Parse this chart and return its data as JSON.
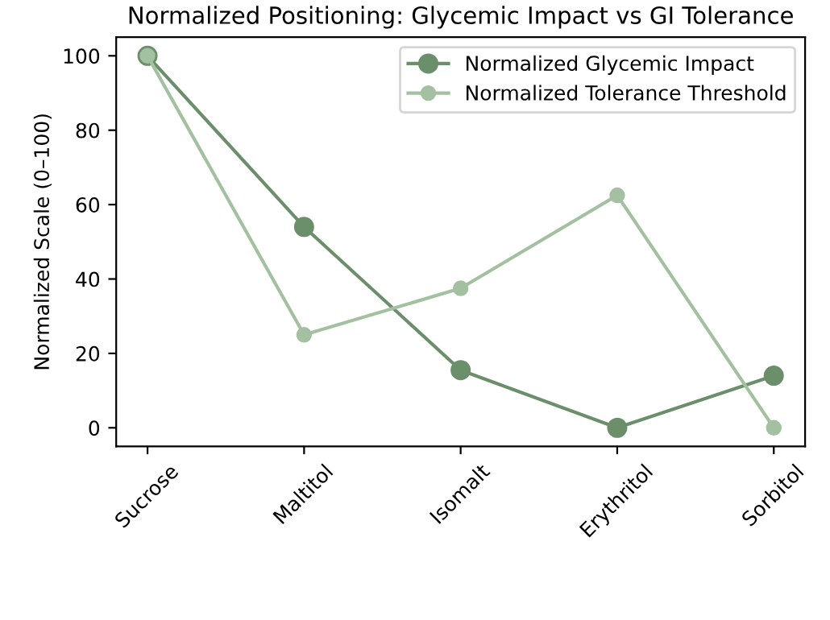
{
  "chart_data": {
    "type": "line",
    "title": "Normalized Positioning: Glycemic Impact vs GI Tolerance",
    "ylabel": "Normalized Scale (0–100)",
    "categories": [
      "Sucrose",
      "Maltitol",
      "Isomalt",
      "Erythritol",
      "Sorbitol"
    ],
    "series": [
      {
        "name": "Normalized Glycemic Impact",
        "color": "#6b8e6b",
        "values": [
          100,
          54,
          15.5,
          0,
          14
        ]
      },
      {
        "name": "Normalized Tolerance Threshold",
        "color": "#a3c1a0",
        "values": [
          100,
          25,
          37.5,
          62.5,
          0
        ]
      }
    ],
    "ylim": [
      -5,
      105
    ],
    "yticks": [
      0,
      20,
      40,
      60,
      80,
      100
    ],
    "legend": "top right",
    "marker": "circle",
    "line_style": "solid",
    "grid": false
  }
}
